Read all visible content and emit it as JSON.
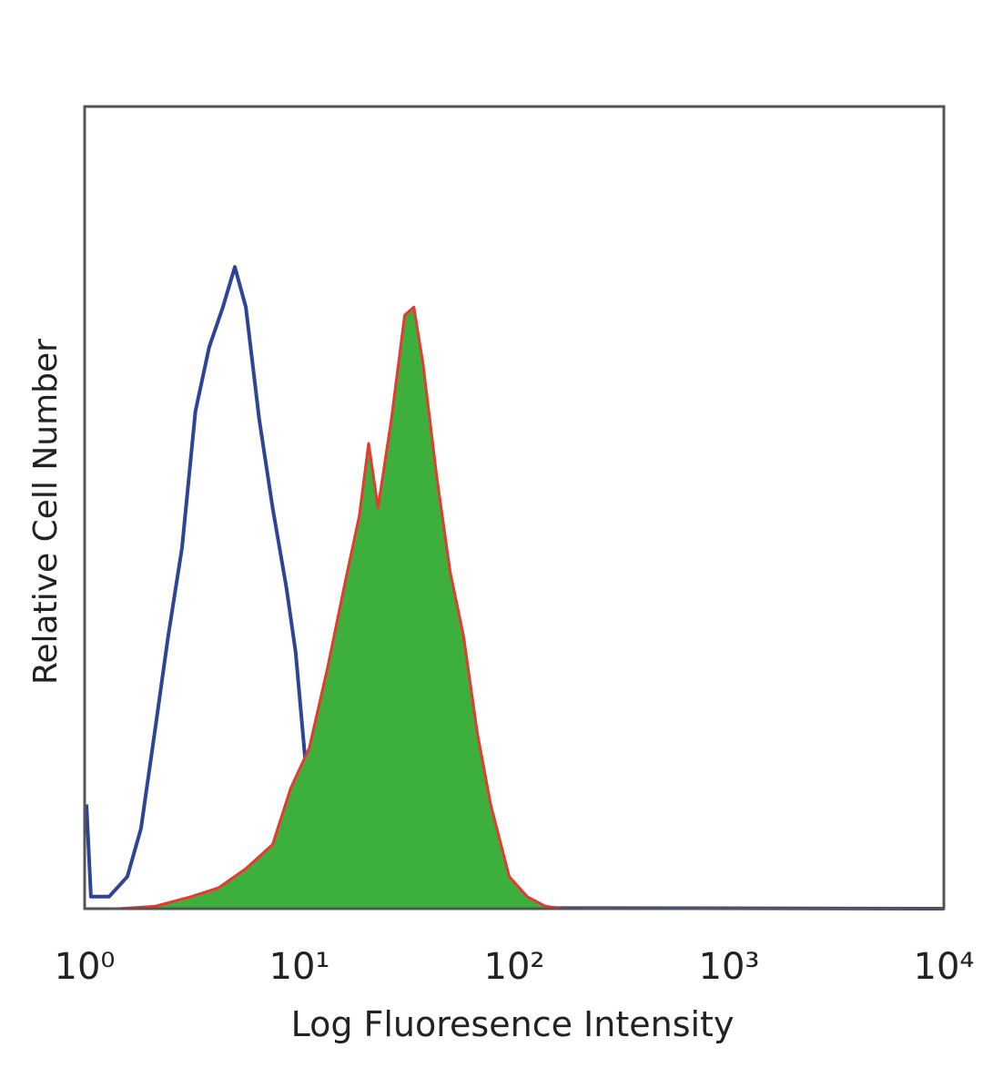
{
  "chart_data": {
    "type": "histogram-overlay",
    "xlabel": "Log Fluoresence Intensity",
    "ylabel": "Relative Cell Number",
    "xscale": "log",
    "xlim": [
      1,
      10000
    ],
    "xticks": [
      {
        "value": 1,
        "label": "10⁰"
      },
      {
        "value": 10,
        "label": "10¹"
      },
      {
        "value": 100,
        "label": "10²"
      },
      {
        "value": 1000,
        "label": "10³"
      },
      {
        "value": 10000,
        "label": "10⁴"
      }
    ],
    "ylim": [
      0,
      100
    ],
    "series": [
      {
        "color": "#2e4597",
        "fill": false,
        "x": [
          1.02,
          1.07,
          1.3,
          1.58,
          1.83,
          2.12,
          2.45,
          2.84,
          3.28,
          3.8,
          4.4,
          5.0,
          5.63,
          6.5,
          7.5,
          8.7,
          9.6,
          10.6,
          12.3,
          14.2,
          18.1,
          24.3,
          52.8,
          10000
        ],
        "values": [
          13,
          1.5,
          1.5,
          4,
          10,
          22,
          34,
          45,
          62,
          70,
          75,
          80,
          75,
          61,
          50,
          40,
          32,
          19,
          9,
          4,
          1.5,
          0.3,
          0.1,
          0
        ]
      },
      {
        "color": "#3daf3d",
        "edgecolor": "#e53b2f",
        "fill": true,
        "x": [
          1.43,
          2.12,
          3.13,
          4.2,
          5.63,
          7.5,
          9.1,
          11.1,
          13.5,
          16.4,
          19.0,
          21.0,
          23.2,
          26.8,
          30.9,
          34.1,
          37.6,
          43.5,
          50.3,
          58.1,
          67.2,
          77.7,
          94.8,
          115,
          140,
          170
        ],
        "values": [
          0,
          0.3,
          1.5,
          2.6,
          5,
          8,
          15,
          20,
          30,
          41,
          49,
          58,
          50,
          61,
          74,
          75,
          68,
          54,
          42,
          34,
          22,
          13,
          4,
          1.5,
          0.3,
          0
        ]
      }
    ]
  }
}
